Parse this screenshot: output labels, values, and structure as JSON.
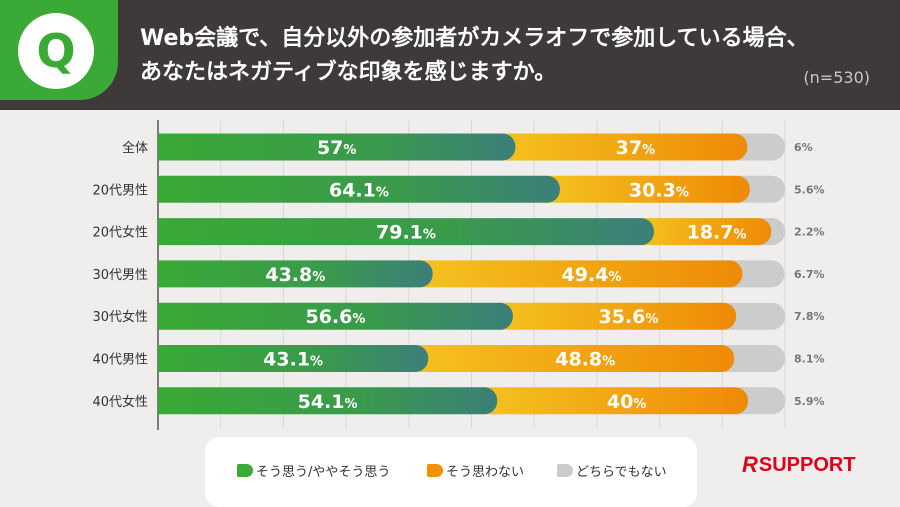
{
  "header": {
    "badge": "Q",
    "question_line1": "Web会議で、自分以外の参加者がカメラオフで参加している場合、",
    "question_line2": "あなたはネガティブな印象を感じますか。",
    "sample_size": "(n=530)"
  },
  "chart_data": {
    "type": "bar",
    "orientation": "horizontal",
    "stacked": true,
    "unit": "%",
    "xlim": [
      0,
      100
    ],
    "categories": [
      "全体",
      "20代男性",
      "20代女性",
      "30代男性",
      "30代女性",
      "40代男性",
      "40代女性"
    ],
    "series": [
      {
        "name": "そう思う/ややそう思う",
        "values": [
          57,
          64.1,
          79.1,
          43.8,
          56.6,
          43.1,
          54.1
        ],
        "labels": [
          "57",
          "64.1",
          "79.1",
          "43.8",
          "56.6",
          "43.1",
          "54.1"
        ],
        "color": "#3aa935"
      },
      {
        "name": "そう思わない",
        "values": [
          37,
          30.3,
          18.7,
          49.4,
          35.6,
          48.8,
          40
        ],
        "labels": [
          "37",
          "30.3",
          "18.7",
          "49.4",
          "35.6",
          "48.8",
          "40"
        ],
        "color": "#f29100"
      },
      {
        "name": "どちらでもない",
        "values": [
          6,
          5.6,
          2.2,
          6.7,
          7.8,
          8.1,
          5.9
        ],
        "labels": [
          "6",
          "5.6",
          "2.2",
          "6.7",
          "7.8",
          "8.1",
          "5.9"
        ],
        "color": "#cccccc"
      }
    ]
  },
  "legend": {
    "items": [
      {
        "label": "そう思う/ややそう思う",
        "color": "#3aa935"
      },
      {
        "label": "そう思わない",
        "color": "#f29100"
      },
      {
        "label": "どちらでもない",
        "color": "#cccccc"
      }
    ]
  },
  "logo": {
    "mark": "R",
    "text": "SUPPORT"
  }
}
